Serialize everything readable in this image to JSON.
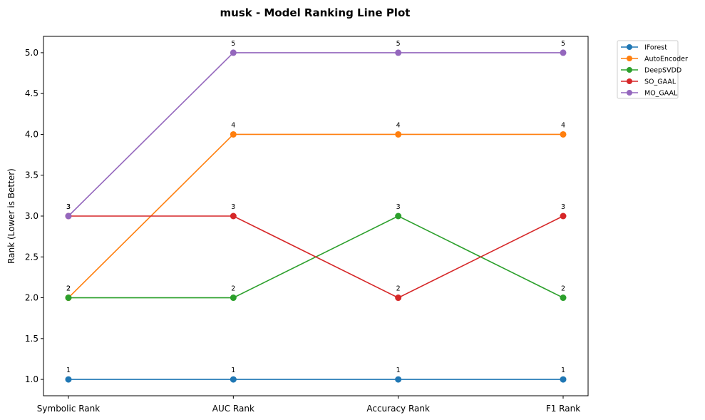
{
  "chart_data": {
    "type": "line",
    "title": "musk - Model Ranking Line Plot",
    "xlabel": "",
    "ylabel": "Rank (Lower is Better)",
    "categories": [
      "Symbolic Rank",
      "AUC Rank",
      "Accuracy Rank",
      "F1 Rank"
    ],
    "ylim": [
      0.8,
      5.2
    ],
    "yticks": [
      1.0,
      1.5,
      2.0,
      2.5,
      3.0,
      3.5,
      4.0,
      4.5,
      5.0
    ],
    "ytick_labels": [
      "1.0",
      "1.5",
      "2.0",
      "2.5",
      "3.0",
      "3.5",
      "4.0",
      "4.5",
      "5.0"
    ],
    "grid": false,
    "legend_position": "outside-top-right",
    "series": [
      {
        "name": "IForest",
        "color": "#1f77b4",
        "values": [
          1,
          1,
          1,
          1
        ],
        "labels": [
          "1",
          "1",
          "1",
          "1"
        ]
      },
      {
        "name": "AutoEncoder",
        "color": "#ff7f0e",
        "values": [
          2,
          4,
          4,
          4
        ],
        "labels": [
          "2",
          "4",
          "4",
          "4"
        ]
      },
      {
        "name": "DeepSVDD",
        "color": "#2ca02c",
        "values": [
          2,
          2,
          3,
          2
        ],
        "labels": [
          "2",
          "2",
          "3",
          "2"
        ]
      },
      {
        "name": "SO_GAAL",
        "color": "#d62728",
        "values": [
          3,
          3,
          2,
          3
        ],
        "labels": [
          "3",
          "3",
          "2",
          "3"
        ]
      },
      {
        "name": "MO_GAAL",
        "color": "#9467bd",
        "values": [
          3,
          5,
          5,
          5
        ],
        "labels": [
          "3",
          "5",
          "5",
          "5"
        ]
      }
    ]
  }
}
